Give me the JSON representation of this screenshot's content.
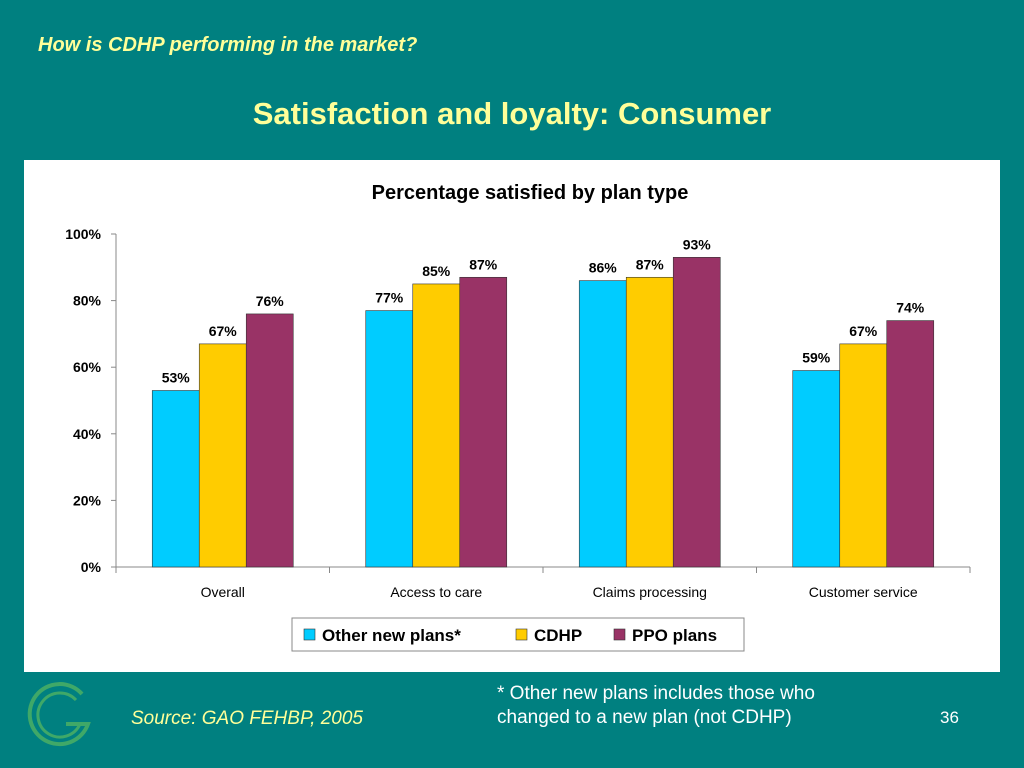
{
  "slide": {
    "header": "How is CDHP performing in the market?",
    "title": "Satisfaction and loyalty: Consumer",
    "source": "Source: GAO FEHBP, 2005",
    "footnote_line1": "* Other new plans includes those who",
    "footnote_line2": "changed to a new plan (not CDHP)",
    "page_number": "36",
    "logo_icon": "g-logo-icon"
  },
  "chart_data": {
    "type": "bar",
    "title": "Percentage satisfied by plan type",
    "categories": [
      "Overall",
      "Access to care",
      "Claims processing",
      "Customer service"
    ],
    "series": [
      {
        "name": "Other new plans*",
        "color": "#00CCFF",
        "values": [
          53,
          77,
          86,
          59
        ]
      },
      {
        "name": "CDHP",
        "color": "#FFCC00",
        "values": [
          67,
          85,
          87,
          67
        ]
      },
      {
        "name": "PPO plans",
        "color": "#993366",
        "values": [
          76,
          87,
          93,
          74
        ]
      }
    ],
    "ylim": [
      0,
      100
    ],
    "yticks": [
      0,
      20,
      40,
      60,
      80,
      100
    ],
    "ytick_format": "%",
    "legend_position": "bottom",
    "plot_background": "#FFFFFF",
    "grid": false
  }
}
